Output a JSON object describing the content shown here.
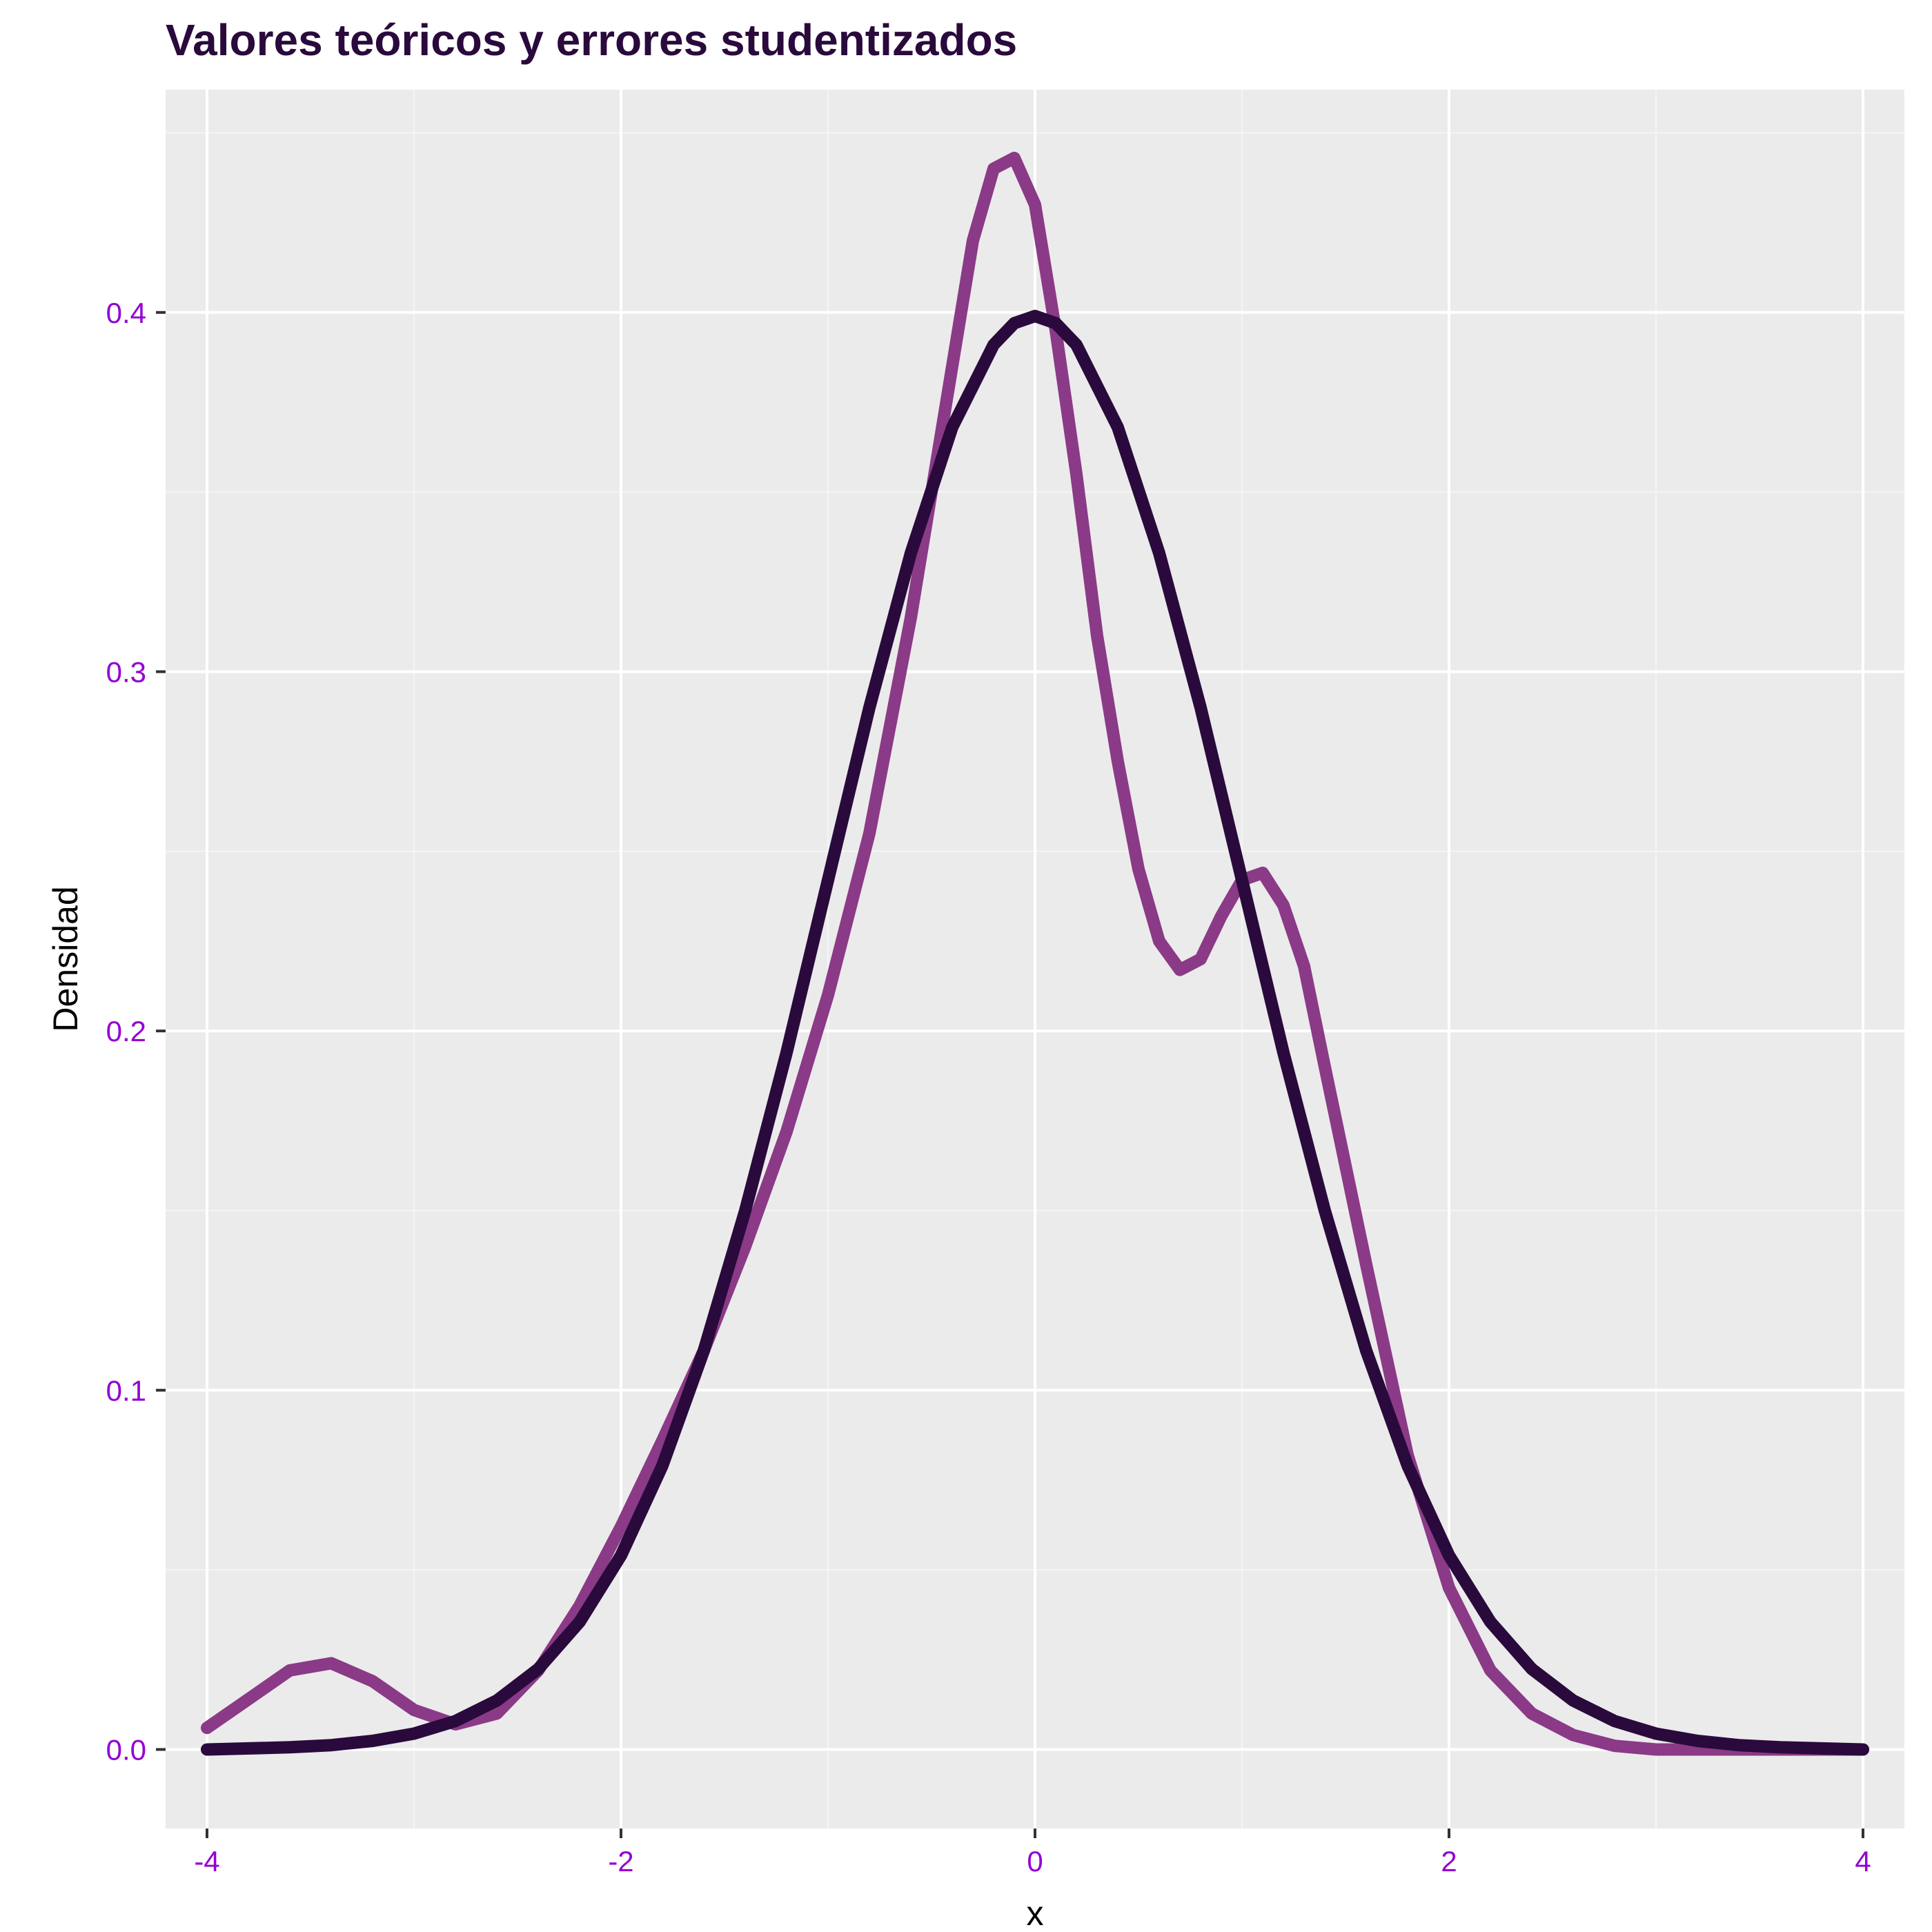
{
  "chart_data": {
    "type": "line",
    "title": "Valores teóricos y errores studentizados",
    "xlabel": "x",
    "ylabel": "Densidad",
    "xlim": [
      -4.2,
      4.2
    ],
    "ylim": [
      -0.022,
      0.462
    ],
    "x_ticks": [
      -4,
      -2,
      0,
      2,
      4
    ],
    "x_tick_labels": [
      "-4",
      "-2",
      "0",
      "2",
      "4"
    ],
    "y_ticks": [
      0.0,
      0.1,
      0.2,
      0.3,
      0.4
    ],
    "y_tick_labels": [
      "0.0",
      "0.1",
      "0.2",
      "0.3",
      "0.4"
    ],
    "grid": true,
    "legend": "none",
    "series": [
      {
        "color": "#8B3A87",
        "x": [
          -4.0,
          -3.8,
          -3.6,
          -3.4,
          -3.2,
          -3.0,
          -2.8,
          -2.6,
          -2.4,
          -2.2,
          -2.0,
          -1.8,
          -1.6,
          -1.4,
          -1.2,
          -1.0,
          -0.8,
          -0.6,
          -0.4,
          -0.3,
          -0.2,
          -0.1,
          0.0,
          0.1,
          0.2,
          0.3,
          0.4,
          0.5,
          0.6,
          0.7,
          0.8,
          0.9,
          1.0,
          1.1,
          1.2,
          1.3,
          1.4,
          1.6,
          1.8,
          2.0,
          2.2,
          2.4,
          2.6,
          2.8,
          3.0,
          3.2,
          3.6,
          4.0
        ],
        "y": [
          0.006,
          0.014,
          0.022,
          0.024,
          0.019,
          0.011,
          0.007,
          0.01,
          0.022,
          0.04,
          0.062,
          0.086,
          0.111,
          0.14,
          0.172,
          0.21,
          0.255,
          0.315,
          0.385,
          0.42,
          0.44,
          0.443,
          0.43,
          0.395,
          0.355,
          0.31,
          0.275,
          0.245,
          0.225,
          0.217,
          0.22,
          0.232,
          0.242,
          0.244,
          0.235,
          0.218,
          0.19,
          0.135,
          0.082,
          0.045,
          0.022,
          0.01,
          0.004,
          0.001,
          0.0,
          0.0,
          0.0,
          0.0
        ]
      },
      {
        "color": "#2A0A3C",
        "x": [
          -4.0,
          -3.6,
          -3.4,
          -3.2,
          -3.0,
          -2.8,
          -2.6,
          -2.4,
          -2.2,
          -2.0,
          -1.8,
          -1.6,
          -1.4,
          -1.2,
          -1.0,
          -0.8,
          -0.6,
          -0.4,
          -0.2,
          -0.1,
          0.0,
          0.1,
          0.2,
          0.4,
          0.6,
          0.8,
          1.0,
          1.2,
          1.4,
          1.6,
          1.8,
          2.0,
          2.2,
          2.4,
          2.6,
          2.8,
          3.0,
          3.2,
          3.4,
          3.6,
          4.0
        ],
        "y": [
          0.0,
          0.0006,
          0.0012,
          0.0024,
          0.0044,
          0.0079,
          0.0136,
          0.0224,
          0.0355,
          0.054,
          0.079,
          0.111,
          0.15,
          0.194,
          0.242,
          0.29,
          0.333,
          0.368,
          0.391,
          0.397,
          0.399,
          0.397,
          0.391,
          0.368,
          0.333,
          0.29,
          0.242,
          0.194,
          0.15,
          0.111,
          0.079,
          0.054,
          0.0355,
          0.0224,
          0.0136,
          0.0079,
          0.0044,
          0.0024,
          0.0012,
          0.0006,
          0.0
        ]
      }
    ],
    "colors": {
      "panel_background": "#EBEBEB",
      "grid_major": "#FFFFFF",
      "grid_minor": "#F5F5F5",
      "title": "#2A0A3C",
      "tick_label": "#9400D3",
      "tick_mark": "#333333"
    }
  }
}
